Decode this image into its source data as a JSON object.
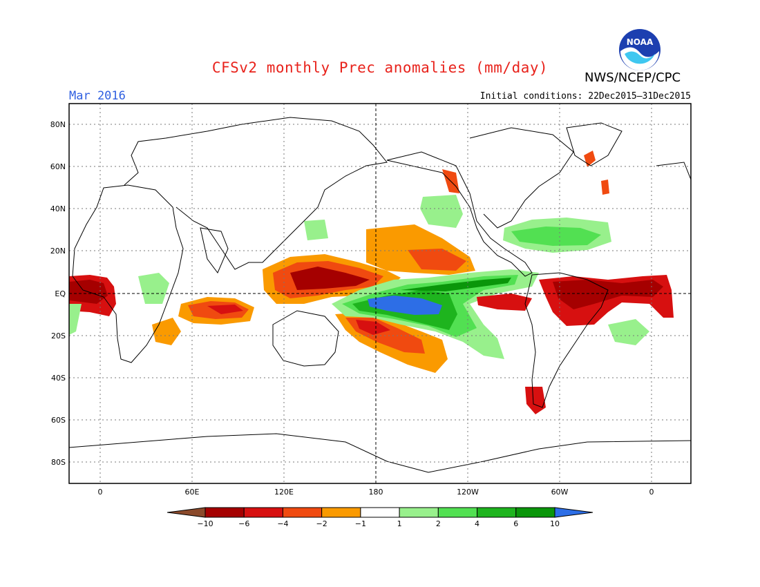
{
  "header": {
    "title": "CFSv2 monthly Prec anomalies (mm/day)",
    "agency": "NWS/NCEP/CPC",
    "month": "Mar 2016",
    "initial_conditions": "Initial conditions: 22Dec2015–31Dec2015",
    "logo_text": "NOAA"
  },
  "map": {
    "lat_labels": [
      "80N",
      "60N",
      "40N",
      "20N",
      "EQ",
      "20S",
      "40S",
      "60S",
      "80S"
    ],
    "lon_labels": [
      "0",
      "60E",
      "120E",
      "180",
      "120W",
      "60W",
      "0"
    ]
  },
  "colorbar": {
    "labels": [
      "−10",
      "−6",
      "−4",
      "−2",
      "−1",
      "1",
      "2",
      "4",
      "6",
      "10"
    ],
    "colors": [
      "#8b4a2b",
      "#a50000",
      "#d71010",
      "#f04a10",
      "#fa9a00",
      "#ffffff",
      "#98f08c",
      "#52e052",
      "#1eb41e",
      "#0a960a",
      "#2d6ee6"
    ]
  },
  "colors": {
    "dry_strong": "#a50000",
    "dry": "#d71010",
    "dry_mod": "#f04a10",
    "dry_weak": "#fa9a00",
    "wet_weak": "#98f08c",
    "wet": "#52e052",
    "wet_mod": "#1eb41e",
    "wet_strong": "#0a960a",
    "wet_extreme": "#2d6ee6"
  }
}
